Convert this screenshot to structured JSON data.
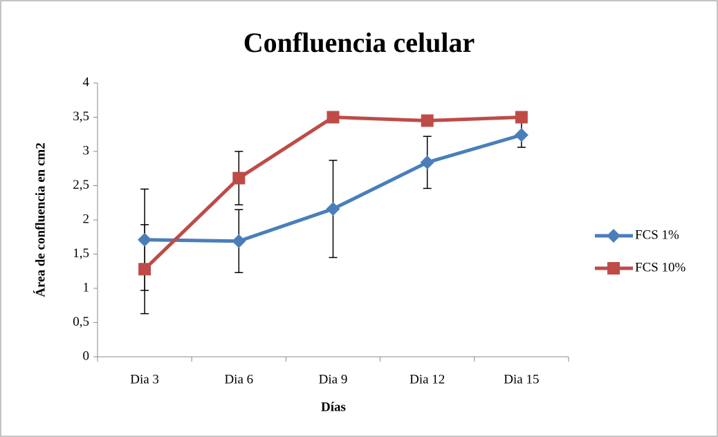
{
  "chart_data": {
    "type": "line",
    "title": "Confluencia celular",
    "x_label": "Días",
    "y_label": "Área de confluencia en cm2",
    "categories": [
      "Dia 3",
      "Dia 6",
      "Dia 9",
      "Dia 12",
      "Dia 15"
    ],
    "series": [
      {
        "name": "FCS 1%",
        "color": "#4a7ebb",
        "marker": "diamond",
        "values": [
          1.71,
          1.69,
          2.16,
          2.84,
          3.24
        ],
        "errors": [
          0.74,
          0.46,
          0.71,
          0.38,
          0.18
        ]
      },
      {
        "name": "FCS 10%",
        "color": "#be4b48",
        "marker": "square",
        "values": [
          1.28,
          2.61,
          3.5,
          3.45,
          3.5
        ],
        "errors": [
          0.65,
          0.39,
          0,
          0,
          0
        ]
      }
    ],
    "ylim": [
      0,
      4
    ],
    "yticks": [
      0,
      {
        "value": 0.5,
        "label": "0,5"
      },
      1,
      {
        "value": 1.5,
        "label": "1,5"
      },
      2,
      {
        "value": 2.5,
        "label": "2,5"
      },
      3,
      {
        "value": 3.5,
        "label": "3,5"
      },
      4
    ],
    "grid": false,
    "legend": "right"
  }
}
